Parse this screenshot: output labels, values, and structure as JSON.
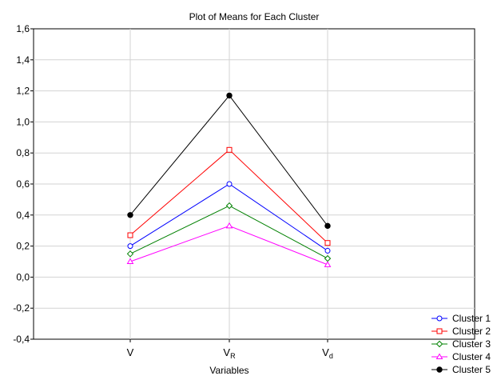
{
  "chart_data": {
    "type": "line",
    "title": "Plot of Means for Each Cluster",
    "xlabel": "Variables",
    "ylabel": "",
    "categories": [
      {
        "base": "V",
        "sub": ""
      },
      {
        "base": "V",
        "sub": "R"
      },
      {
        "base": "V",
        "sub": "d"
      }
    ],
    "ylim": [
      -0.4,
      1.6
    ],
    "yticks": [
      "-0,4",
      "-0,2",
      "0,0",
      "0,2",
      "0,4",
      "0,6",
      "0,8",
      "1,0",
      "1,2",
      "1,4",
      "1,6"
    ],
    "ytick_values": [
      -0.4,
      -0.2,
      0.0,
      0.2,
      0.4,
      0.6,
      0.8,
      1.0,
      1.2,
      1.4,
      1.6
    ],
    "grid": true,
    "legend_position": "bottom-right",
    "series": [
      {
        "name": "Cluster  1",
        "values": [
          0.2,
          0.6,
          0.17
        ],
        "color": "#0000ff",
        "marker": "circle-open"
      },
      {
        "name": "Cluster  2",
        "values": [
          0.27,
          0.82,
          0.22
        ],
        "color": "#ff0000",
        "marker": "square-open"
      },
      {
        "name": "Cluster  3",
        "values": [
          0.15,
          0.46,
          0.12
        ],
        "color": "#008000",
        "marker": "diamond-open"
      },
      {
        "name": "Cluster  4",
        "values": [
          0.1,
          0.33,
          0.08
        ],
        "color": "#ff00ff",
        "marker": "triangle-open"
      },
      {
        "name": "Cluster  5",
        "values": [
          0.4,
          1.17,
          0.33
        ],
        "color": "#000000",
        "marker": "circle-filled"
      }
    ]
  }
}
